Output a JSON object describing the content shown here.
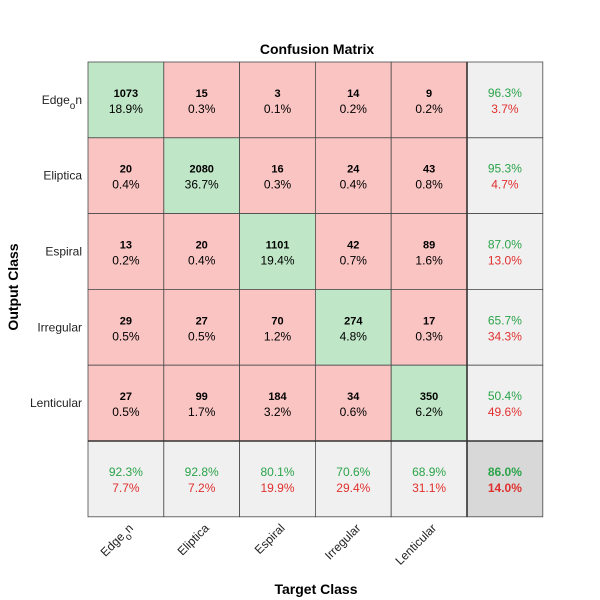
{
  "chart_data": {
    "type": "heatmap",
    "title": "Confusion Matrix",
    "xlabel": "Target Class",
    "ylabel": "Output Class",
    "row_labels": [
      {
        "base": "Edge",
        "sub": "o",
        "tail": "n"
      },
      {
        "base": "Eliptica",
        "sub": "",
        "tail": ""
      },
      {
        "base": "Espiral",
        "sub": "",
        "tail": ""
      },
      {
        "base": "Irregular",
        "sub": "",
        "tail": ""
      },
      {
        "base": "Lenticular",
        "sub": "",
        "tail": ""
      }
    ],
    "col_labels": [
      {
        "base": "Edge",
        "sub": "o",
        "tail": "n"
      },
      {
        "base": "Eliptica",
        "sub": "",
        "tail": ""
      },
      {
        "base": "Espiral",
        "sub": "",
        "tail": ""
      },
      {
        "base": "Irregular",
        "sub": "",
        "tail": ""
      },
      {
        "base": "Lenticular",
        "sub": "",
        "tail": ""
      }
    ],
    "counts": [
      [
        1073,
        15,
        3,
        14,
        9
      ],
      [
        20,
        2080,
        16,
        24,
        43
      ],
      [
        13,
        20,
        1101,
        42,
        89
      ],
      [
        29,
        27,
        70,
        274,
        17
      ],
      [
        27,
        99,
        184,
        34,
        350
      ]
    ],
    "percents": [
      [
        "18.9%",
        "0.3%",
        "0.1%",
        "0.2%",
        "0.2%"
      ],
      [
        "0.4%",
        "36.7%",
        "0.3%",
        "0.4%",
        "0.8%"
      ],
      [
        "0.2%",
        "0.4%",
        "19.4%",
        "0.7%",
        "1.6%"
      ],
      [
        "0.5%",
        "0.5%",
        "1.2%",
        "4.8%",
        "0.3%"
      ],
      [
        "0.5%",
        "1.7%",
        "3.2%",
        "0.6%",
        "6.2%"
      ]
    ],
    "row_summary": [
      {
        "correct": "96.3%",
        "error": "3.7%"
      },
      {
        "correct": "95.3%",
        "error": "4.7%"
      },
      {
        "correct": "87.0%",
        "error": "13.0%"
      },
      {
        "correct": "65.7%",
        "error": "34.3%"
      },
      {
        "correct": "50.4%",
        "error": "49.6%"
      }
    ],
    "col_summary": [
      {
        "correct": "92.3%",
        "error": "7.7%"
      },
      {
        "correct": "92.8%",
        "error": "7.2%"
      },
      {
        "correct": "80.1%",
        "error": "19.9%"
      },
      {
        "correct": "70.6%",
        "error": "29.4%"
      },
      {
        "correct": "68.9%",
        "error": "31.1%"
      }
    ],
    "overall": {
      "correct": "86.0%",
      "error": "14.0%"
    },
    "colors": {
      "diagonal": "#bfe6c6",
      "off_diagonal": "#f9c4c2",
      "summary": "#f0f0f0",
      "overall": "#d8d8d8",
      "correct_text": "#2aa44a",
      "error_text": "#e0302e",
      "grid": "#4a4a4a"
    }
  }
}
